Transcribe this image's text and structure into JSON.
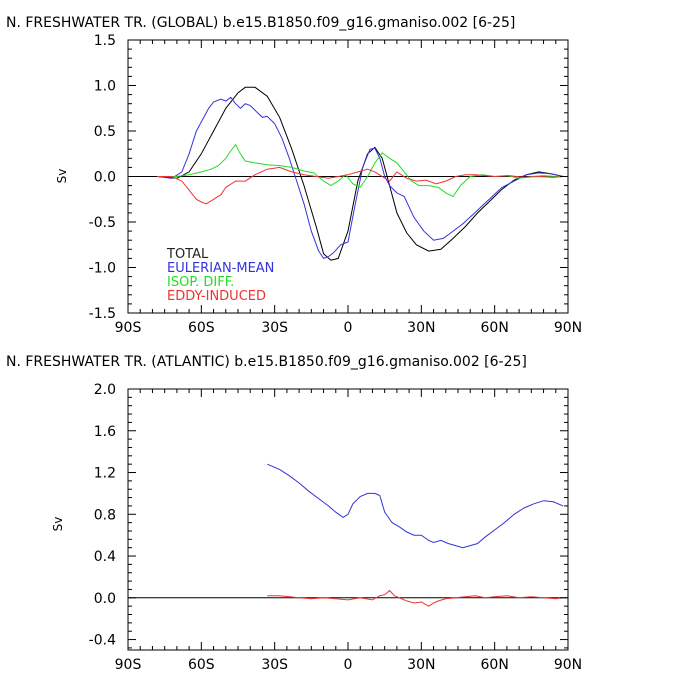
{
  "chart_data": [
    {
      "type": "line",
      "title": "N. FRESHWATER TR. (GLOBAL) b.e15.B1850.f09_g16.gmaniso.002 [6-25]",
      "ylabel": "Sv",
      "xlabel": "",
      "xlim": [
        -90,
        90
      ],
      "ylim": [
        -1.5,
        1.5
      ],
      "xticks": [
        -90,
        -60,
        -30,
        0,
        30,
        60,
        90
      ],
      "xticklabels": [
        "90S",
        "60S",
        "30S",
        "0",
        "30N",
        "60N",
        "90N"
      ],
      "yticks": [
        -1.5,
        -1.0,
        -0.5,
        0.0,
        0.5,
        1.0,
        1.5
      ],
      "yticklabels": [
        "-1.5",
        "-1.0",
        "-0.5",
        "0.0",
        "0.5",
        "1.0",
        "1.5"
      ],
      "legend_position": "bottom-left",
      "series": [
        {
          "name": "TOTAL",
          "color": "#000000",
          "x": [
            -78,
            -70,
            -65,
            -60,
            -55,
            -50,
            -45,
            -42,
            -38,
            -33,
            -28,
            -23,
            -18,
            -13,
            -10,
            -7,
            -4,
            0,
            4,
            8,
            11,
            14,
            17,
            20,
            24,
            28,
            33,
            38,
            43,
            48,
            53,
            58,
            63,
            68,
            73,
            78,
            83,
            88
          ],
          "y": [
            0.0,
            -0.02,
            0.05,
            0.25,
            0.5,
            0.75,
            0.92,
            0.98,
            0.98,
            0.88,
            0.65,
            0.3,
            -0.1,
            -0.55,
            -0.85,
            -0.92,
            -0.9,
            -0.6,
            -0.05,
            0.25,
            0.32,
            0.2,
            -0.1,
            -0.4,
            -0.62,
            -0.75,
            -0.82,
            -0.8,
            -0.68,
            -0.55,
            -0.4,
            -0.27,
            -0.14,
            -0.04,
            0.02,
            0.05,
            0.03,
            0.0
          ]
        },
        {
          "name": "EULERIAN-MEAN",
          "color": "#3333dd",
          "x": [
            -78,
            -72,
            -68,
            -65,
            -62,
            -60,
            -57,
            -55,
            -52,
            -50,
            -48,
            -46,
            -44,
            -42,
            -40,
            -37,
            -35,
            -33,
            -30,
            -27,
            -24,
            -21,
            -18,
            -15,
            -12,
            -10,
            -8,
            -6,
            -3,
            0,
            3,
            6,
            9,
            11,
            13,
            15,
            17,
            20,
            23,
            27,
            31,
            35,
            39,
            43,
            47,
            51,
            55,
            59,
            63,
            68,
            73,
            78,
            83,
            88
          ],
          "y": [
            0.0,
            -0.02,
            0.05,
            0.25,
            0.5,
            0.6,
            0.75,
            0.82,
            0.85,
            0.83,
            0.87,
            0.8,
            0.75,
            0.8,
            0.78,
            0.7,
            0.65,
            0.66,
            0.58,
            0.42,
            0.2,
            -0.05,
            -0.3,
            -0.6,
            -0.82,
            -0.9,
            -0.88,
            -0.84,
            -0.75,
            -0.72,
            -0.3,
            0.1,
            0.3,
            0.31,
            0.2,
            0.0,
            -0.1,
            -0.18,
            -0.22,
            -0.45,
            -0.6,
            -0.7,
            -0.68,
            -0.6,
            -0.52,
            -0.42,
            -0.32,
            -0.22,
            -0.12,
            -0.05,
            0.02,
            0.04,
            0.03,
            0.0
          ]
        },
        {
          "name": "ISOP. DIFF.",
          "color": "#22dd22",
          "x": [
            -78,
            -70,
            -65,
            -60,
            -56,
            -53,
            -50,
            -48,
            -46,
            -44,
            -42,
            -38,
            -33,
            -28,
            -23,
            -18,
            -14,
            -10,
            -7,
            -4,
            -1,
            2,
            5,
            8,
            11,
            14,
            17,
            20,
            23,
            26,
            29,
            33,
            37,
            40,
            43,
            46,
            50,
            55,
            60,
            65,
            70,
            75,
            80,
            85,
            88
          ],
          "y": [
            0.0,
            0.0,
            0.02,
            0.05,
            0.08,
            0.12,
            0.2,
            0.28,
            0.35,
            0.25,
            0.17,
            0.15,
            0.13,
            0.12,
            0.1,
            0.06,
            0.04,
            -0.05,
            -0.1,
            -0.05,
            0.02,
            -0.08,
            -0.12,
            0.0,
            0.15,
            0.26,
            0.2,
            0.15,
            0.05,
            -0.05,
            -0.1,
            -0.1,
            -0.12,
            -0.18,
            -0.22,
            -0.1,
            0.0,
            0.02,
            0.0,
            0.01,
            -0.02,
            0.0,
            0.01,
            0.0,
            0.0
          ]
        },
        {
          "name": "EDDY-INDUCED",
          "color": "#ee3333",
          "x": [
            -78,
            -72,
            -68,
            -65,
            -62,
            -60,
            -58,
            -55,
            -52,
            -50,
            -46,
            -42,
            -38,
            -33,
            -28,
            -23,
            -18,
            -13,
            -8,
            -4,
            0,
            4,
            8,
            11,
            14,
            17,
            20,
            24,
            28,
            32,
            36,
            40,
            44,
            48,
            52,
            56,
            60,
            66,
            72,
            78,
            84,
            88
          ],
          "y": [
            0.0,
            0.0,
            -0.05,
            -0.15,
            -0.25,
            -0.28,
            -0.3,
            -0.25,
            -0.2,
            -0.12,
            -0.05,
            -0.05,
            0.02,
            0.08,
            0.1,
            0.05,
            0.02,
            0.0,
            -0.02,
            0.0,
            0.02,
            0.05,
            0.08,
            0.05,
            0.0,
            -0.05,
            0.05,
            -0.02,
            -0.05,
            -0.04,
            -0.08,
            -0.05,
            0.0,
            0.02,
            0.02,
            0.01,
            0.0,
            0.01,
            -0.01,
            0.0,
            -0.01,
            0.0
          ]
        }
      ]
    },
    {
      "type": "line",
      "title": "N. FRESHWATER TR. (ATLANTIC) b.e15.B1850.f09_g16.gmaniso.002 [6-25]",
      "ylabel": "Sv",
      "xlabel": "",
      "xlim": [
        -90,
        90
      ],
      "ylim": [
        -0.5,
        2.0
      ],
      "xticks": [
        -90,
        -60,
        -30,
        0,
        30,
        60,
        90
      ],
      "xticklabels": [
        "90S",
        "60S",
        "30S",
        "0",
        "30N",
        "60N",
        "90N"
      ],
      "yticks": [
        -0.4,
        0.0,
        0.4,
        0.8,
        1.2,
        1.6,
        2.0
      ],
      "yticklabels": [
        "-0.4",
        "0.0",
        "0.4",
        "0.8",
        "1.2",
        "1.6",
        "2.0"
      ],
      "series": [
        {
          "color": "#3333dd",
          "x": [
            -33,
            -28,
            -24,
            -20,
            -16,
            -12,
            -8,
            -5,
            -2,
            0,
            2,
            5,
            8,
            11,
            13,
            15,
            18,
            21,
            24,
            27,
            30,
            33,
            35,
            38,
            41,
            44,
            47,
            50,
            53,
            56,
            60,
            64,
            68,
            72,
            76,
            80,
            84,
            88
          ],
          "y": [
            1.28,
            1.23,
            1.17,
            1.1,
            1.02,
            0.95,
            0.88,
            0.82,
            0.77,
            0.8,
            0.9,
            0.97,
            1.0,
            1.0,
            0.98,
            0.82,
            0.72,
            0.68,
            0.63,
            0.6,
            0.6,
            0.55,
            0.53,
            0.55,
            0.52,
            0.5,
            0.48,
            0.5,
            0.52,
            0.58,
            0.65,
            0.72,
            0.8,
            0.86,
            0.9,
            0.93,
            0.92,
            0.88
          ]
        },
        {
          "color": "#ee3333",
          "x": [
            -33,
            -28,
            -24,
            -20,
            -15,
            -10,
            -5,
            0,
            5,
            10,
            13,
            15,
            17,
            19,
            21,
            24,
            27,
            30,
            33,
            35,
            37,
            40,
            44,
            48,
            52,
            56,
            60,
            65,
            70,
            75,
            80,
            85,
            88
          ],
          "y": [
            0.02,
            0.02,
            0.01,
            0.0,
            -0.01,
            0.0,
            -0.01,
            -0.02,
            0.0,
            -0.02,
            0.02,
            0.03,
            0.07,
            0.02,
            0.0,
            -0.03,
            -0.05,
            -0.04,
            -0.08,
            -0.05,
            -0.03,
            -0.01,
            0.0,
            0.01,
            0.02,
            0.0,
            0.01,
            0.02,
            0.0,
            0.01,
            0.0,
            -0.01,
            0.0
          ]
        }
      ]
    }
  ]
}
